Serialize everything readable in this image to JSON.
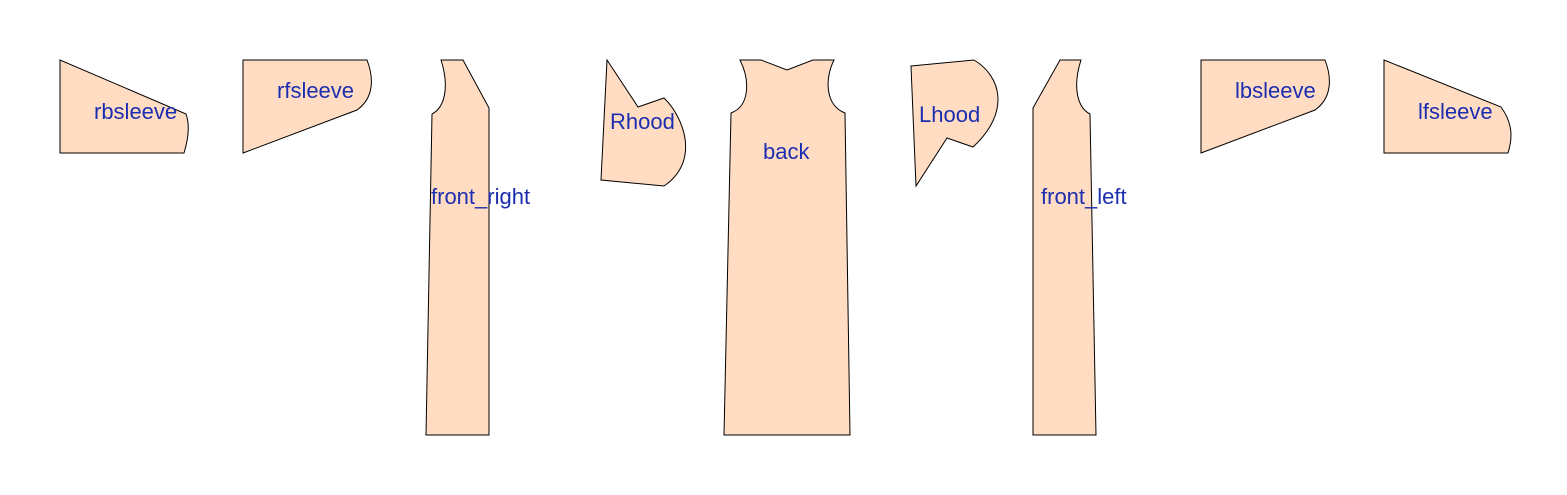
{
  "colors": {
    "background": "#ffffff",
    "piece_fill": "#ffdcc2",
    "piece_stroke": "#000000",
    "label_text": "#1c2eb0"
  },
  "pieces": [
    {
      "id": "rbsleeve",
      "label": "rbsleeve"
    },
    {
      "id": "rfsleeve",
      "label": "rfsleeve"
    },
    {
      "id": "front_right",
      "label": "front_right"
    },
    {
      "id": "rhood",
      "label": "Rhood"
    },
    {
      "id": "back",
      "label": "back"
    },
    {
      "id": "lhood",
      "label": "Lhood"
    },
    {
      "id": "front_left",
      "label": "front_left"
    },
    {
      "id": "lbsleeve",
      "label": "lbsleeve"
    },
    {
      "id": "lfsleeve",
      "label": "lfsleeve"
    }
  ]
}
